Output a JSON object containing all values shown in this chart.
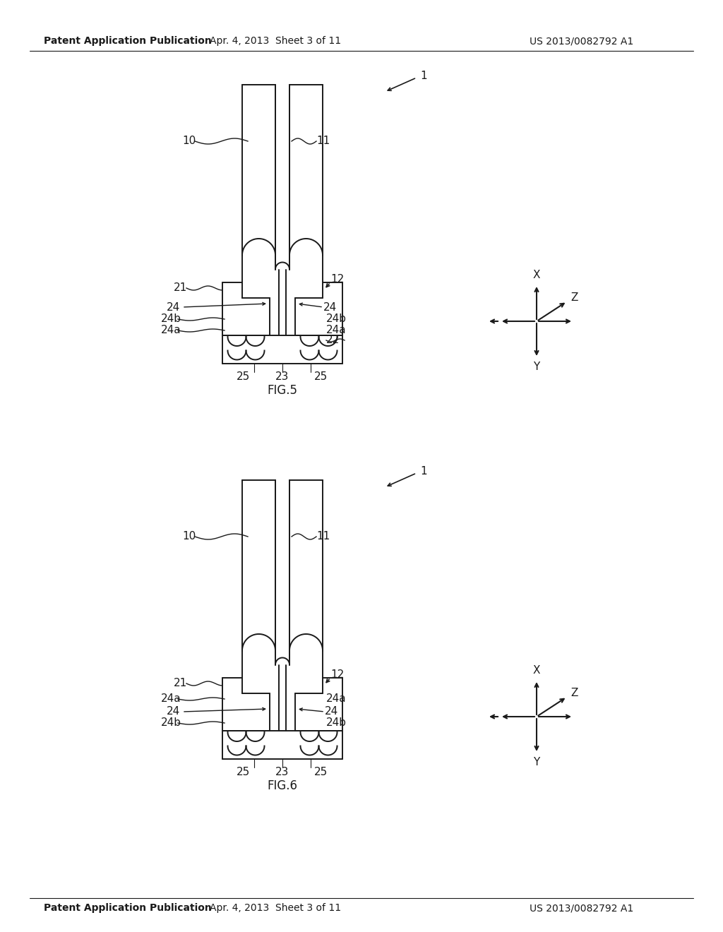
{
  "background_color": "#ffffff",
  "header_left": "Patent Application Publication",
  "header_center": "Apr. 4, 2013  Sheet 3 of 11",
  "header_right": "US 2013/0082792 A1",
  "fig5_label": "FIG.5",
  "fig6_label": "FIG.6",
  "text_color": "#1a1a1a",
  "line_color": "#1a1a1a",
  "lw": 1.4
}
